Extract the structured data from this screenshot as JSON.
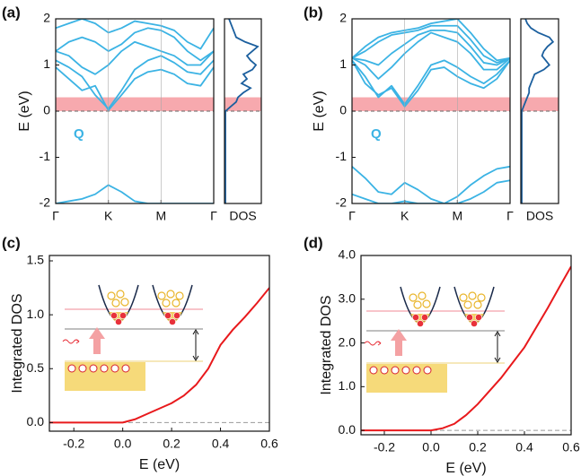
{
  "chart_data": [
    {
      "type": "band",
      "panel_label": "(a)",
      "ylabel": "E (eV)",
      "annotation": "Q",
      "x": [
        0,
        0.25,
        0.5,
        0.75,
        1,
        1.25,
        1.5,
        1.75,
        2,
        2.25,
        2.5,
        2.75,
        3
      ],
      "xlim": [
        0,
        3
      ],
      "xticks": [
        {
          "value": 0,
          "label": "Γ"
        },
        {
          "value": 1,
          "label": "K"
        },
        {
          "value": 2,
          "label": "M"
        },
        {
          "value": 3,
          "label": "Γ"
        }
      ],
      "xgrid": true,
      "ylim": [
        -2,
        2
      ],
      "yticks": [
        -2,
        -1,
        0,
        1,
        2
      ],
      "highlight": [
        0,
        0.3
      ],
      "highlight_color": "#f7a9ae",
      "reference_line": 0,
      "series": [
        {
          "color": "#3bb3e4",
          "values": [
            0.95,
            0.7,
            0.45,
            0.55,
            0.02,
            0.35,
            0.7,
            0.85,
            0.9,
            0.8,
            0.6,
            0.55,
            0.95
          ]
        },
        {
          "color": "#3bb3e4",
          "values": [
            1.1,
            0.95,
            0.75,
            0.35,
            0.05,
            0.45,
            0.9,
            1.1,
            1.2,
            1.05,
            0.85,
            0.8,
            1.1
          ]
        },
        {
          "color": "#3bb3e4",
          "values": [
            1.3,
            1.2,
            0.95,
            0.8,
            1.0,
            1.3,
            1.5,
            1.4,
            1.3,
            1.2,
            1.0,
            1.0,
            1.3
          ]
        },
        {
          "color": "#3bb3e4",
          "values": [
            1.3,
            1.5,
            1.6,
            1.5,
            1.3,
            1.45,
            1.7,
            1.8,
            1.75,
            1.6,
            1.3,
            1.1,
            1.3
          ]
        },
        {
          "color": "#3bb3e4",
          "values": [
            1.8,
            1.9,
            2.0,
            1.9,
            1.7,
            1.8,
            1.95,
            1.9,
            1.85,
            1.75,
            1.5,
            1.35,
            1.8
          ]
        },
        {
          "color": "#3bb3e4",
          "values": [
            -2.0,
            -1.95,
            -1.9,
            -1.8,
            -1.6,
            -1.75,
            -1.95,
            -2.0,
            -2.0,
            -2.0,
            -2.0,
            -2.0,
            -2.0
          ]
        }
      ],
      "dos": {
        "label": "DOS",
        "color": "#1b5f9e",
        "xlim": [
          0,
          1
        ],
        "energy": [
          -2,
          0,
          0.1,
          0.2,
          0.3,
          0.4,
          0.5,
          0.6,
          0.7,
          0.8,
          0.9,
          1.0,
          1.1,
          1.2,
          1.3,
          1.4,
          1.5,
          1.6,
          1.7,
          1.8,
          1.9,
          2.0
        ],
        "values": [
          0,
          0,
          0.15,
          0.3,
          0.35,
          0.5,
          0.7,
          0.45,
          0.6,
          0.5,
          0.75,
          0.85,
          0.7,
          0.6,
          0.75,
          0.9,
          0.55,
          0.3,
          0.25,
          0.2,
          0.15,
          0.1
        ]
      }
    },
    {
      "type": "band",
      "panel_label": "(b)",
      "ylabel": "E (eV)",
      "annotation": "Q",
      "x": [
        0,
        0.25,
        0.5,
        0.75,
        1,
        1.25,
        1.5,
        1.75,
        2,
        2.25,
        2.5,
        2.75,
        3
      ],
      "xlim": [
        0,
        3
      ],
      "xticks": [
        {
          "value": 0,
          "label": "Γ"
        },
        {
          "value": 1,
          "label": "K"
        },
        {
          "value": 2,
          "label": "M"
        },
        {
          "value": 3,
          "label": "Γ"
        }
      ],
      "xgrid": true,
      "ylim": [
        -2,
        2
      ],
      "yticks": [
        -2,
        -1,
        0,
        1,
        2
      ],
      "highlight": [
        0,
        0.3
      ],
      "highlight_color": "#f7a9ae",
      "reference_line": 0,
      "series": [
        {
          "color": "#3bb3e4",
          "values": [
            1.1,
            0.6,
            0.35,
            0.5,
            0.1,
            0.45,
            0.9,
            0.95,
            0.75,
            0.6,
            0.5,
            0.7,
            1.1
          ]
        },
        {
          "color": "#3bb3e4",
          "values": [
            1.1,
            0.75,
            0.3,
            0.55,
            0.15,
            0.55,
            1.0,
            1.1,
            0.95,
            0.75,
            0.6,
            0.8,
            1.1
          ]
        },
        {
          "color": "#3bb3e4",
          "values": [
            1.15,
            1.0,
            0.7,
            0.95,
            1.25,
            1.5,
            1.7,
            1.6,
            1.5,
            1.25,
            0.9,
            0.9,
            1.15
          ]
        },
        {
          "color": "#3bb3e4",
          "values": [
            1.15,
            1.1,
            1.0,
            1.25,
            1.45,
            1.65,
            1.75,
            1.75,
            1.7,
            1.4,
            1.05,
            1.0,
            1.15
          ]
        },
        {
          "color": "#3bb3e4",
          "values": [
            1.15,
            1.3,
            1.5,
            1.65,
            1.7,
            1.75,
            1.85,
            1.85,
            1.85,
            1.55,
            1.2,
            1.05,
            1.15
          ]
        },
        {
          "color": "#3bb3e4",
          "values": [
            1.15,
            1.4,
            1.6,
            1.7,
            1.75,
            1.8,
            1.9,
            1.95,
            2.0,
            1.7,
            1.35,
            1.1,
            1.15
          ]
        },
        {
          "color": "#3bb3e4",
          "values": [
            -1.2,
            -1.45,
            -1.75,
            -1.8,
            -1.55,
            -1.7,
            -1.9,
            -2.0,
            -1.85,
            -1.6,
            -1.4,
            -1.25,
            -1.2
          ]
        },
        {
          "color": "#3bb3e4",
          "values": [
            -1.8,
            -1.9,
            -2.0,
            -2.0,
            -1.95,
            -2.0,
            -2.0,
            -2.0,
            -2.0,
            -1.9,
            -1.75,
            -1.55,
            -1.5
          ]
        }
      ],
      "dos": {
        "label": "DOS",
        "color": "#1b5f9e",
        "xlim": [
          0,
          1
        ],
        "energy": [
          -2,
          0,
          0.1,
          0.2,
          0.3,
          0.4,
          0.5,
          0.6,
          0.7,
          0.8,
          0.9,
          1.0,
          1.1,
          1.2,
          1.3,
          1.4,
          1.5,
          1.6,
          1.7,
          1.8,
          1.9,
          2.0
        ],
        "values": [
          0,
          0,
          0.05,
          0.1,
          0.15,
          0.2,
          0.2,
          0.25,
          0.3,
          0.35,
          0.6,
          0.75,
          0.65,
          0.55,
          0.6,
          0.7,
          0.85,
          0.75,
          0.45,
          0.25,
          0.15,
          0.1
        ]
      }
    },
    {
      "type": "line",
      "panel_label": "(c)",
      "xlabel": "E (eV)",
      "ylabel": "Integrated DOS",
      "color": "#e8191c",
      "reference_line": 0,
      "x": [
        -0.3,
        -0.2,
        -0.1,
        0,
        0.05,
        0.1,
        0.15,
        0.2,
        0.25,
        0.3,
        0.35,
        0.4,
        0.45,
        0.5,
        0.55,
        0.6
      ],
      "values": [
        0,
        0,
        0,
        0,
        0.03,
        0.08,
        0.13,
        0.18,
        0.25,
        0.35,
        0.5,
        0.72,
        0.86,
        0.98,
        1.11,
        1.25
      ],
      "xlim": [
        -0.3,
        0.6
      ],
      "xticks": [
        -0.2,
        {
          "value": 0,
          "label": "0.0"
        },
        0.2,
        0.4,
        0.6
      ],
      "ylim": [
        -0.08,
        1.55
      ],
      "yticks": [
        {
          "value": 0,
          "label": "0.0"
        },
        0.5,
        {
          "value": 1,
          "label": "1.0"
        },
        1.5
      ]
    },
    {
      "type": "line",
      "panel_label": "(d)",
      "xlabel": "E (eV)",
      "ylabel": "Integrated DOS",
      "color": "#e8191c",
      "reference_line": 0,
      "x": [
        -0.3,
        -0.2,
        -0.1,
        0,
        0.05,
        0.1,
        0.15,
        0.2,
        0.25,
        0.3,
        0.35,
        0.4,
        0.45,
        0.5,
        0.55,
        0.6
      ],
      "values": [
        0,
        0,
        0,
        0,
        0.05,
        0.15,
        0.35,
        0.6,
        0.9,
        1.2,
        1.55,
        1.9,
        2.35,
        2.8,
        3.28,
        3.75
      ],
      "xlim": [
        -0.3,
        0.6
      ],
      "xticks": [
        -0.2,
        {
          "value": 0,
          "label": "0.0"
        },
        0.2,
        0.4,
        0.6
      ],
      "ylim": [
        -0.1,
        4.0
      ],
      "yticks": [
        {
          "value": 0,
          "label": "0.0"
        },
        {
          "value": 1,
          "label": "1.0"
        },
        {
          "value": 2,
          "label": "2.0"
        },
        {
          "value": 3,
          "label": "3.0"
        },
        {
          "value": 4,
          "label": "4.0"
        }
      ]
    }
  ]
}
